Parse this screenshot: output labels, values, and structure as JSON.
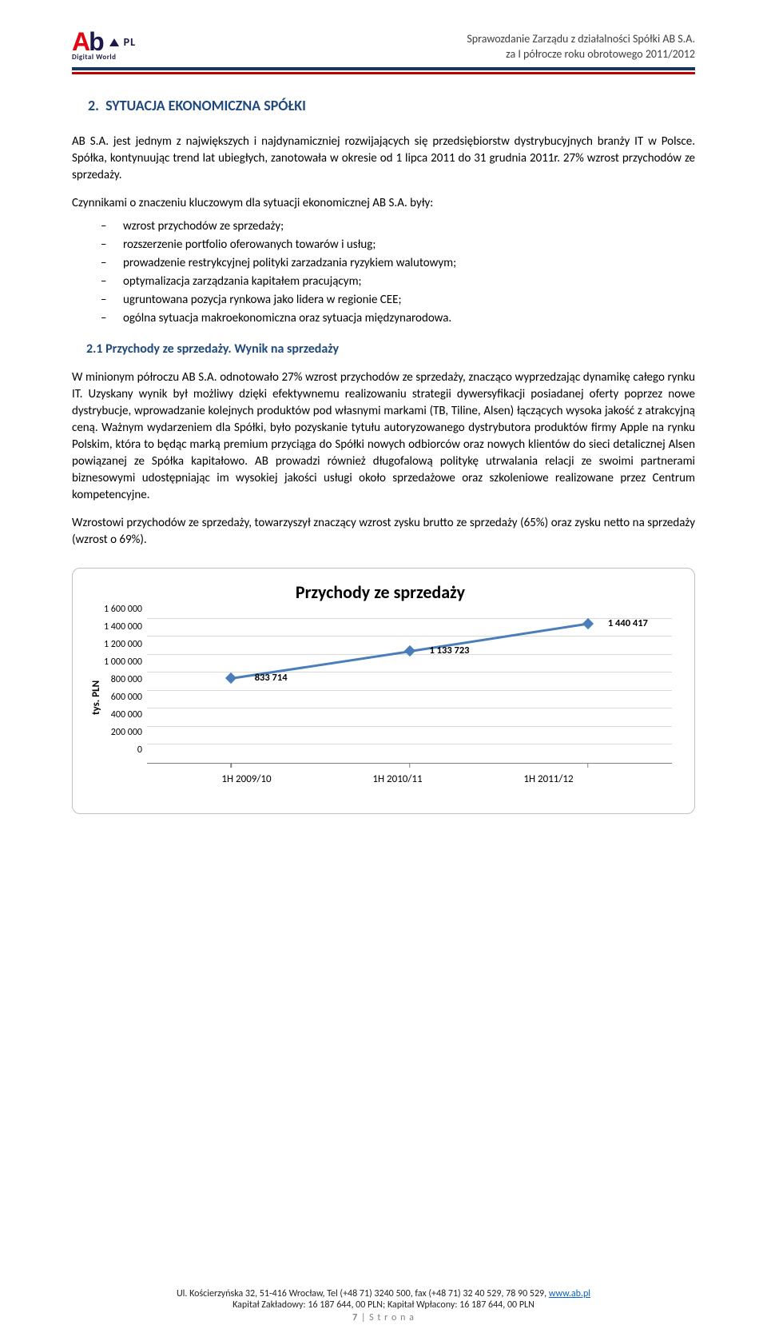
{
  "header": {
    "line1": "Sprawozdanie Zarządu z działalności Spółki AB S.A.",
    "line2": "za I półrocze roku obrotowego 2011/2012",
    "logo_sub": "Digital World",
    "logo_pl": "PL"
  },
  "section2": {
    "number": "2.",
    "title": "SYTUACJA EKONOMICZNA SPÓŁKI",
    "p1": "AB S.A. jest jednym z największych i najdynamiczniej rozwijających się przedsiębiorstw dystrybucyjnych branży IT w Polsce. Spółka, kontynuując trend lat ubiegłych, zanotowała w okresie od 1 lipca 2011 do 31 grudnia 2011r. 27% wzrost przychodów ze sprzedaży.",
    "p2": "Czynnikami o znaczeniu kluczowym dla sytuacji ekonomicznej AB S.A. były:",
    "bullets": [
      "wzrost przychodów ze sprzedaży;",
      "rozszerzenie portfolio oferowanych towarów i usług;",
      "prowadzenie restrykcyjnej polityki zarzadzania ryzykiem walutowym;",
      "optymalizacja zarządzania kapitałem pracującym;",
      "ugruntowana pozycja rynkowa jako lidera w regionie CEE;",
      "ogólna sytuacja makroekonomiczna oraz sytuacja międzynarodowa."
    ]
  },
  "sub21": {
    "title": "2.1 Przychody ze sprzedaży. Wynik na sprzedaży",
    "p1": "W minionym półroczu AB S.A. odnotowało 27% wzrost przychodów ze sprzedaży, znacząco wyprzedzając dynamikę całego rynku IT. Uzyskany wynik był możliwy dzięki efektywnemu realizowaniu strategii dywersyfikacji posiadanej oferty poprzez nowe dystrybucje, wprowadzanie kolejnych produktów pod własnymi markami (TB, Tiline, Alsen) łączących wysoka jakość z atrakcyjną ceną. Ważnym wydarzeniem dla Spółki, było pozyskanie tytułu autoryzowanego dystrybutora produktów firmy Apple na rynku Polskim, która to będąc marką premium przyciąga do Spółki nowych odbiorców oraz nowych klientów do sieci detalicznej Alsen powiązanej ze Spółka kapitałowo. AB prowadzi również długofalową politykę utrwalania relacji ze swoimi partnerami biznesowymi udostępniając im wysokiej jakości usługi około sprzedażowe oraz szkoleniowe realizowane przez Centrum kompetencyjne.",
    "p2": "Wzrostowi przychodów ze sprzedaży, towarzyszył znaczący wzrost zysku brutto ze sprzedaży (65%) oraz zysku netto na sprzedaży (wzrost o 69%)."
  },
  "chart": {
    "title": "Przychody ze sprzedaży",
    "type": "line",
    "ylabel": "tys. PLN",
    "ymax": 1600000,
    "ytick_step": 200000,
    "yticks": [
      "1 600 000",
      "1 400 000",
      "1 200 000",
      "1 000 000",
      "800 000",
      "600 000",
      "400 000",
      "200 000",
      "0"
    ],
    "categories": [
      "1H 2009/10",
      "1H 2010/11",
      "1H 2011/12"
    ],
    "values": [
      833714,
      1133723,
      1440417
    ],
    "data_labels": [
      "833 714",
      "1 133 723",
      "1 440 417"
    ],
    "line_color": "#4a7ebb",
    "marker_color": "#4a7ebb",
    "grid_color": "#d9d9d9",
    "border_color": "#bcc3cc",
    "title_fontsize": 22,
    "label_fontsize": 13,
    "background_color": "#ffffff"
  },
  "footer": {
    "line1_a": "Ul. Kościerzyńska 32, 51-416 Wrocław, Tel (+48 71) 3240 500, fax (+48 71) 32 40 529, 78 90 529, ",
    "link": "www.ab.pl",
    "line2": "Kapitał Zakładowy: 16 187 644, 00 PLN; Kapitał Wpłacony: 16 187 644, 00 PLN",
    "pagenum_bold": "7",
    "pagenum_rest": " | S t r o n a"
  }
}
